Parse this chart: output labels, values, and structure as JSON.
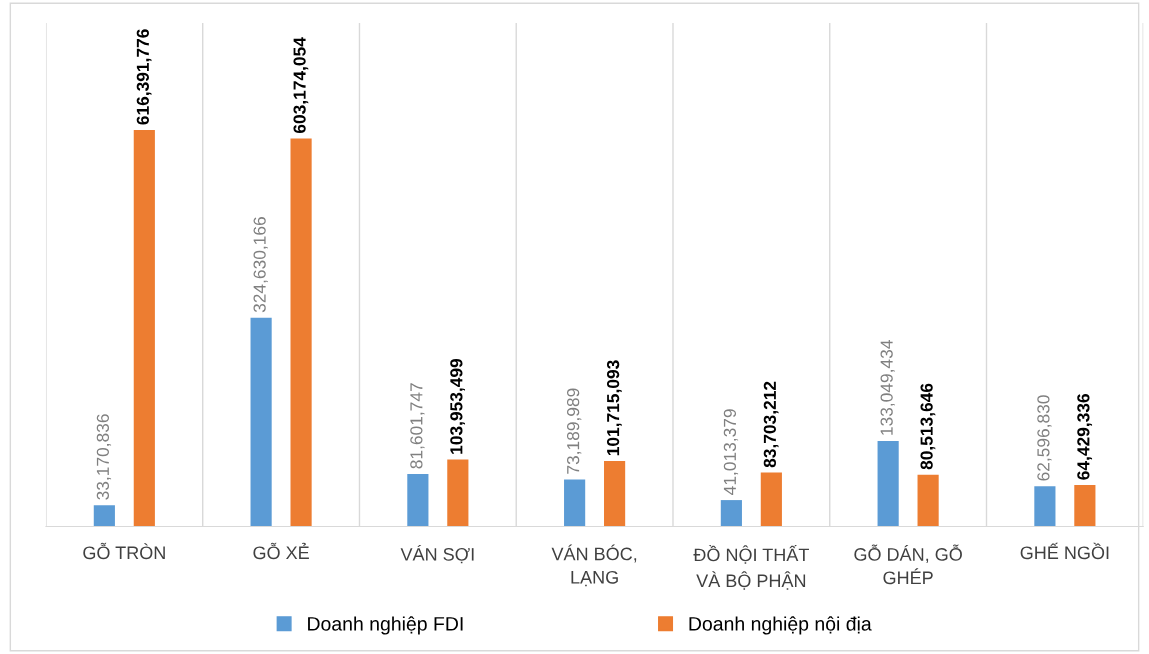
{
  "chart_data": {
    "type": "bar",
    "categories": [
      "GỖ TRÒN",
      "GỖ XẺ",
      "VÁN SỢI",
      "VÁN BÓC,\nLẠNG",
      "ĐỒ NỘI THẤT\nVÀ BỘ PHẬN",
      "GỖ DÁN, GỖ\nGHÉP",
      "GHẾ NGỒI"
    ],
    "series": [
      {
        "name": "Doanh nghiệp FDI",
        "color": "#5b9bd5",
        "values": [
          33170836,
          324630166,
          81601747,
          73189989,
          41013379,
          133049434,
          62596830
        ],
        "value_labels": [
          "33,170,836",
          "324,630,166",
          "81,601,747",
          "73,189,989",
          "41,013,379",
          "133,049,434",
          "62,596,830"
        ]
      },
      {
        "name": "Doanh nghiệp nội địa",
        "color": "#ed7d31",
        "values": [
          616391776,
          603174054,
          103953499,
          101715093,
          83703212,
          80513646,
          64429336
        ],
        "value_labels": [
          "616,391,776",
          "603,174,054",
          "103,953,499",
          "101,715,093",
          "83,703,212",
          "80,513,646",
          "64,429,336"
        ]
      }
    ],
    "grid": "x",
    "legend": "bottom"
  }
}
